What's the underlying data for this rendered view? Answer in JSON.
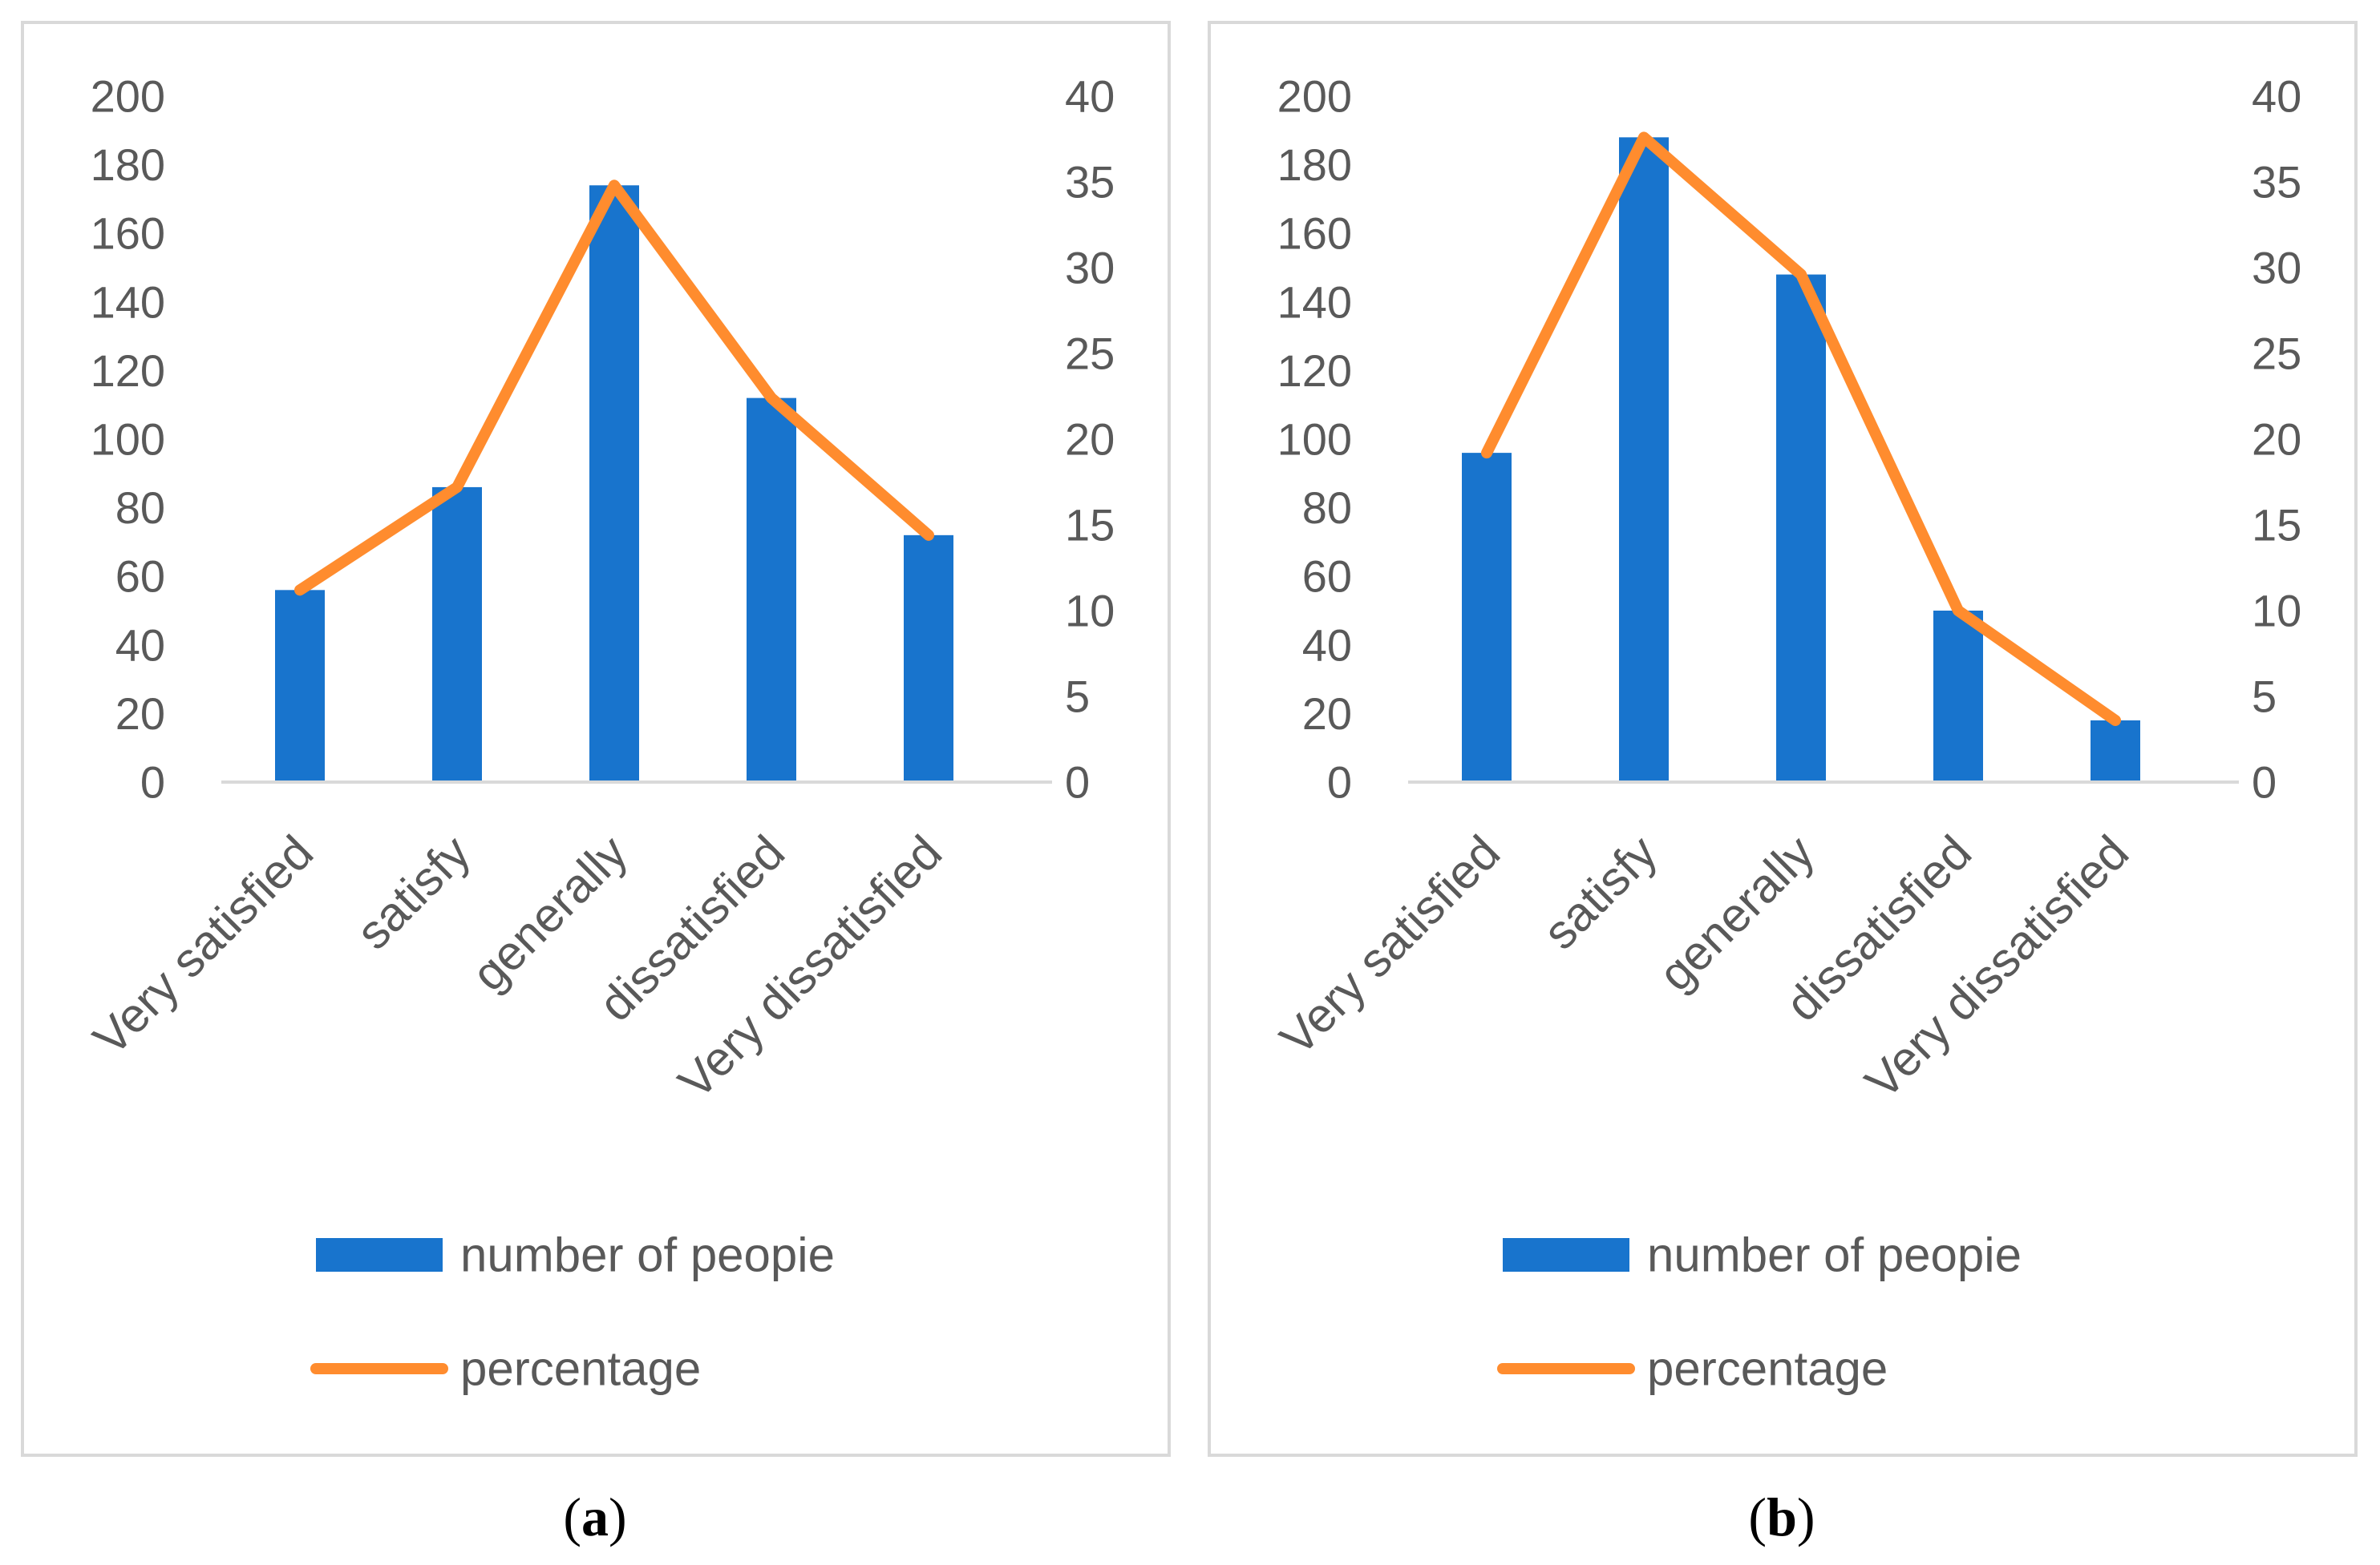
{
  "chart_data": [
    {
      "type": "bar",
      "panel": "a",
      "caption_open": "(",
      "caption_letter": "a",
      "caption_close": ")",
      "categories": [
        "Very satisfied",
        "satisfy",
        "generally",
        "dissatisfied",
        "Very dissatisfied"
      ],
      "series": [
        {
          "name": "number of peopie",
          "type": "bar",
          "axis": "left",
          "color": "#1874cd",
          "values": [
            56,
            86,
            174,
            112,
            72
          ]
        },
        {
          "name": "percentage",
          "type": "line",
          "axis": "right",
          "color": "#ff8c2e",
          "values": [
            11.2,
            17.2,
            34.8,
            22.4,
            14.4
          ]
        }
      ],
      "y_left": {
        "min": 0,
        "max": 200,
        "step": 20,
        "ticks": [
          "0",
          "20",
          "40",
          "60",
          "80",
          "100",
          "120",
          "140",
          "160",
          "180",
          "200"
        ]
      },
      "y_right": {
        "min": 0,
        "max": 40,
        "step": 5,
        "ticks": [
          "0",
          "5",
          "10",
          "15",
          "20",
          "25",
          "30",
          "35",
          "40"
        ]
      },
      "legend_position": "bottom",
      "grid": false
    },
    {
      "type": "bar",
      "panel": "b",
      "caption_open": "(",
      "caption_letter": "b",
      "caption_close": ")",
      "categories": [
        "Very satisfied",
        "satisfy",
        "generally",
        "dissatisfied",
        "Very dissatisfied"
      ],
      "series": [
        {
          "name": "number of peopie",
          "type": "bar",
          "axis": "left",
          "color": "#1874cd",
          "values": [
            96,
            188,
            148,
            50,
            18
          ]
        },
        {
          "name": "percentage",
          "type": "line",
          "axis": "right",
          "color": "#ff8c2e",
          "values": [
            19.2,
            37.6,
            29.6,
            10.0,
            3.6
          ]
        }
      ],
      "y_left": {
        "min": 0,
        "max": 200,
        "step": 20,
        "ticks": [
          "0",
          "20",
          "40",
          "60",
          "80",
          "100",
          "120",
          "140",
          "160",
          "180",
          "200"
        ]
      },
      "y_right": {
        "min": 0,
        "max": 40,
        "step": 5,
        "ticks": [
          "0",
          "5",
          "10",
          "15",
          "20",
          "25",
          "30",
          "35",
          "40"
        ]
      },
      "legend_position": "bottom",
      "grid": false
    }
  ]
}
